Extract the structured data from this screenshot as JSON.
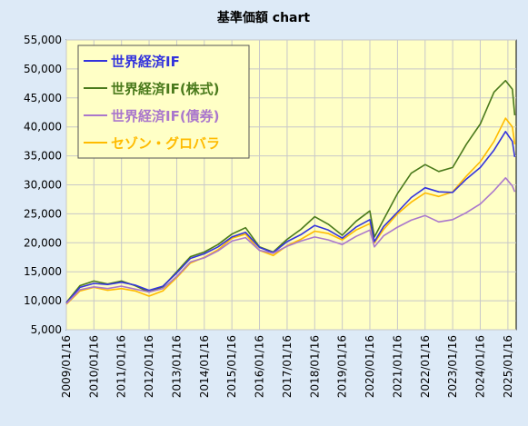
{
  "chart_data": {
    "type": "line",
    "title": "基準価額 chart",
    "xlabel": "",
    "ylabel": "",
    "ylim": [
      5000,
      55000
    ],
    "yticks": [
      "5,000",
      "10,000",
      "15,000",
      "20,000",
      "25,000",
      "30,000",
      "35,000",
      "40,000",
      "45,000",
      "50,000",
      "55,000"
    ],
    "xticks": [
      "2009/01/16",
      "2010/01/16",
      "2011/01/16",
      "2012/01/16",
      "2013/01/16",
      "2014/01/16",
      "2015/01/16",
      "2016/01/16",
      "2017/01/16",
      "2018/01/16",
      "2019/01/16",
      "2020/01/16",
      "2021/01/16",
      "2022/01/16",
      "2023/01/16",
      "2024/01/16",
      "2025/01/16"
    ],
    "grid": true,
    "legend_position": "top-left",
    "x": [
      "2009/01/16",
      "2009/07/16",
      "2010/01/16",
      "2010/07/16",
      "2011/01/16",
      "2011/07/16",
      "2012/01/16",
      "2012/07/16",
      "2013/01/16",
      "2013/07/16",
      "2014/01/16",
      "2014/07/16",
      "2015/01/16",
      "2015/07/16",
      "2016/01/16",
      "2016/07/16",
      "2017/01/16",
      "2017/07/16",
      "2018/01/16",
      "2018/07/16",
      "2019/01/16",
      "2019/07/16",
      "2020/01/16",
      "2020/03/16",
      "2020/07/16",
      "2021/01/16",
      "2021/07/16",
      "2022/01/16",
      "2022/07/16",
      "2023/01/16",
      "2023/07/16",
      "2024/01/16",
      "2024/07/16",
      "2024/12/16",
      "2025/03/16",
      "2025/04/16"
    ],
    "series": [
      {
        "name": "世界経済IF",
        "color": "#3333dd",
        "values": [
          9600,
          12300,
          13000,
          12800,
          13200,
          12700,
          11800,
          12500,
          14800,
          17300,
          18100,
          19300,
          21000,
          21800,
          19200,
          18300,
          20200,
          21400,
          23000,
          22200,
          20800,
          22700,
          24000,
          20200,
          22800,
          25300,
          27800,
          29500,
          28800,
          28700,
          31000,
          33000,
          36000,
          39200,
          37500,
          34800
        ]
      },
      {
        "name": "世界経済IF(株式)",
        "color": "#4a7a1c",
        "values": [
          9700,
          12600,
          13400,
          12900,
          13400,
          12600,
          11500,
          12400,
          15000,
          17600,
          18400,
          19700,
          21500,
          22600,
          19300,
          18400,
          20600,
          22300,
          24500,
          23200,
          21300,
          23700,
          25500,
          21000,
          24000,
          28500,
          32000,
          33500,
          32300,
          33000,
          37000,
          40500,
          46000,
          48000,
          46500,
          42000
        ]
      },
      {
        "name": "世界経済IF(債券)",
        "color": "#aa77cc",
        "values": [
          9500,
          11900,
          12400,
          12100,
          12500,
          12000,
          11500,
          12100,
          14200,
          16700,
          17400,
          18600,
          20300,
          20900,
          18700,
          18200,
          19400,
          20300,
          21000,
          20500,
          19700,
          21100,
          22200,
          19300,
          21200,
          22700,
          23900,
          24700,
          23600,
          24000,
          25200,
          26700,
          29000,
          31200,
          29800,
          28800
        ]
      },
      {
        "name": "セゾン・グロバラ",
        "color": "#ffbb00",
        "values": [
          9400,
          11700,
          12300,
          11800,
          12100,
          11700,
          10800,
          11700,
          14000,
          16500,
          17500,
          18800,
          20800,
          21500,
          18700,
          17800,
          19500,
          20600,
          22000,
          21600,
          20500,
          22200,
          23300,
          20000,
          22300,
          25000,
          27000,
          28600,
          28000,
          28800,
          31500,
          34000,
          37500,
          41500,
          40000,
          37000
        ]
      }
    ]
  }
}
